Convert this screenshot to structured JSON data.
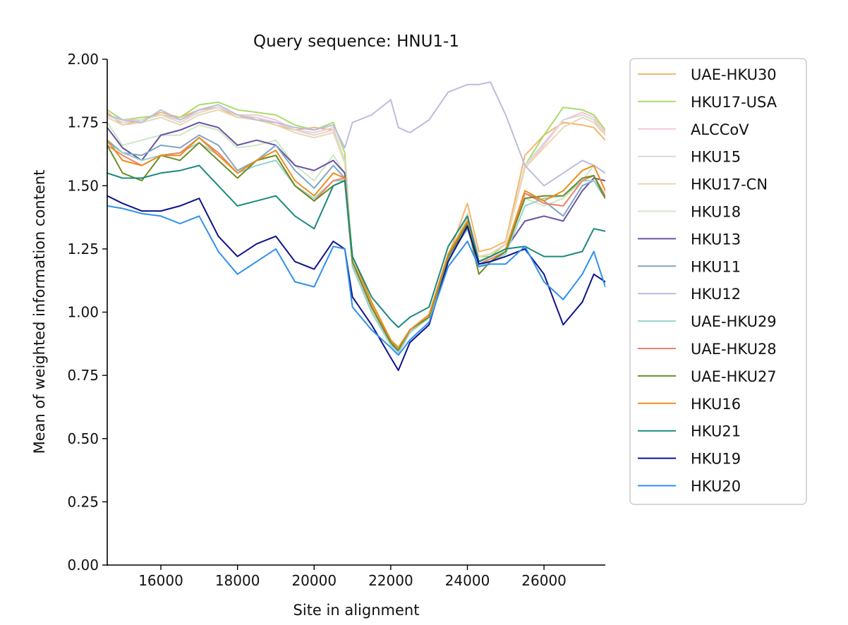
{
  "chart_data": {
    "type": "line",
    "title": "Query sequence: HNU1-1",
    "xlabel": "Site in alignment",
    "ylabel": "Mean of weighted information content",
    "xlim": [
      14600,
      27600
    ],
    "ylim": [
      0,
      2
    ],
    "xticks": [
      16000,
      18000,
      20000,
      22000,
      24000,
      26000
    ],
    "xtick_labels": [
      "16000",
      "18000",
      "20000",
      "22000",
      "24000",
      "26000"
    ],
    "yticks": [
      0,
      0.25,
      0.5,
      0.75,
      1.0,
      1.25,
      1.5,
      1.75,
      2.0
    ],
    "ytick_labels": [
      "0.00",
      "0.25",
      "0.50",
      "0.75",
      "1.00",
      "1.25",
      "1.50",
      "1.75",
      "2.00"
    ],
    "grid": false,
    "legend_position": "outside-right",
    "x": [
      14600,
      15000,
      15500,
      16000,
      16500,
      17000,
      17500,
      18000,
      18500,
      19000,
      19500,
      20000,
      20500,
      20800,
      21000,
      21500,
      22000,
      22200,
      22500,
      23000,
      23500,
      24000,
      24300,
      24600,
      25000,
      25500,
      26000,
      26500,
      27000,
      27300,
      27600
    ],
    "series": [
      {
        "name": "UAE-HKU30",
        "color": "#f7b46b",
        "values": [
          1.79,
          1.74,
          1.76,
          1.79,
          1.77,
          1.8,
          1.81,
          1.77,
          1.77,
          1.74,
          1.72,
          1.73,
          1.72,
          1.6,
          1.2,
          1.03,
          0.89,
          0.86,
          0.92,
          0.98,
          1.22,
          1.43,
          1.24,
          1.25,
          1.28,
          1.62,
          1.7,
          1.75,
          1.74,
          1.73,
          1.68
        ]
      },
      {
        "name": "HKU17-USA",
        "color": "#a9dc6c",
        "values": [
          1.8,
          1.76,
          1.77,
          1.78,
          1.77,
          1.82,
          1.83,
          1.8,
          1.79,
          1.78,
          1.74,
          1.72,
          1.75,
          1.63,
          1.2,
          1.0,
          0.88,
          0.86,
          0.93,
          0.99,
          1.2,
          1.38,
          1.22,
          1.22,
          1.27,
          1.58,
          1.7,
          1.81,
          1.8,
          1.78,
          1.72
        ]
      },
      {
        "name": "ALCCoV",
        "color": "#f6c6d8",
        "values": [
          1.78,
          1.76,
          1.76,
          1.78,
          1.76,
          1.79,
          1.81,
          1.78,
          1.78,
          1.76,
          1.72,
          1.71,
          1.73,
          1.6,
          1.19,
          1.02,
          0.88,
          0.85,
          0.93,
          0.98,
          1.2,
          1.37,
          1.22,
          1.23,
          1.27,
          1.57,
          1.66,
          1.76,
          1.79,
          1.77,
          1.71
        ]
      },
      {
        "name": "HKU15",
        "color": "#d9d9d9",
        "values": [
          1.78,
          1.75,
          1.76,
          1.78,
          1.75,
          1.79,
          1.81,
          1.78,
          1.77,
          1.75,
          1.72,
          1.7,
          1.72,
          1.6,
          1.19,
          1.01,
          0.88,
          0.85,
          0.93,
          0.98,
          1.21,
          1.38,
          1.22,
          1.23,
          1.27,
          1.58,
          1.67,
          1.76,
          1.78,
          1.76,
          1.7
        ]
      },
      {
        "name": "HKU17-CN",
        "color": "#ead7b3",
        "values": [
          1.77,
          1.74,
          1.75,
          1.77,
          1.74,
          1.78,
          1.8,
          1.77,
          1.76,
          1.74,
          1.71,
          1.69,
          1.71,
          1.59,
          1.19,
          1.01,
          0.88,
          0.85,
          0.93,
          0.98,
          1.21,
          1.39,
          1.22,
          1.23,
          1.27,
          1.57,
          1.65,
          1.73,
          1.77,
          1.75,
          1.7
        ]
      },
      {
        "name": "HKU18",
        "color": "#cbe8c2",
        "values": [
          1.75,
          1.66,
          1.68,
          1.7,
          1.7,
          1.74,
          1.72,
          1.65,
          1.66,
          1.68,
          1.58,
          1.52,
          1.62,
          1.55,
          1.18,
          1.0,
          0.87,
          0.84,
          0.92,
          0.98,
          1.22,
          1.38,
          1.2,
          1.21,
          1.24,
          1.45,
          1.42,
          1.45,
          1.52,
          1.58,
          1.55
        ]
      },
      {
        "name": "HKU13",
        "color": "#6a51a3",
        "values": [
          1.73,
          1.65,
          1.6,
          1.7,
          1.72,
          1.75,
          1.73,
          1.66,
          1.68,
          1.66,
          1.58,
          1.56,
          1.6,
          1.55,
          1.2,
          1.02,
          0.88,
          0.84,
          0.92,
          0.98,
          1.22,
          1.33,
          1.2,
          1.22,
          1.25,
          1.36,
          1.38,
          1.36,
          1.48,
          1.53,
          1.52
        ]
      },
      {
        "name": "HKU11",
        "color": "#7ba7c6",
        "values": [
          1.68,
          1.63,
          1.62,
          1.66,
          1.65,
          1.7,
          1.66,
          1.56,
          1.6,
          1.66,
          1.56,
          1.49,
          1.58,
          1.53,
          1.18,
          1.0,
          0.87,
          0.84,
          0.92,
          0.98,
          1.21,
          1.33,
          1.19,
          1.2,
          1.24,
          1.47,
          1.44,
          1.38,
          1.5,
          1.52,
          1.45
        ]
      },
      {
        "name": "HKU12",
        "color": "#bcbddc",
        "values": [
          1.78,
          1.76,
          1.75,
          1.8,
          1.76,
          1.8,
          1.82,
          1.78,
          1.76,
          1.75,
          1.73,
          1.72,
          1.74,
          1.65,
          1.75,
          1.78,
          1.84,
          1.73,
          1.71,
          1.76,
          1.87,
          1.9,
          1.9,
          1.91,
          1.78,
          1.58,
          1.5,
          1.55,
          1.6,
          1.58,
          1.55
        ]
      },
      {
        "name": "UAE-HKU29",
        "color": "#96d3cc",
        "values": [
          1.67,
          1.63,
          1.6,
          1.62,
          1.63,
          1.67,
          1.62,
          1.55,
          1.58,
          1.6,
          1.5,
          1.45,
          1.52,
          1.52,
          1.18,
          1.0,
          0.87,
          0.84,
          0.92,
          0.98,
          1.22,
          1.35,
          1.18,
          1.2,
          1.23,
          1.42,
          1.45,
          1.46,
          1.52,
          1.52,
          1.46
        ]
      },
      {
        "name": "UAE-HKU28",
        "color": "#f1806a",
        "values": [
          1.66,
          1.62,
          1.58,
          1.62,
          1.63,
          1.69,
          1.63,
          1.55,
          1.6,
          1.62,
          1.5,
          1.44,
          1.52,
          1.53,
          1.2,
          1.02,
          0.88,
          0.85,
          0.93,
          0.99,
          1.23,
          1.36,
          1.19,
          1.21,
          1.24,
          1.47,
          1.43,
          1.42,
          1.52,
          1.54,
          1.46
        ]
      },
      {
        "name": "UAE-HKU27",
        "color": "#6b8e23",
        "values": [
          1.66,
          1.55,
          1.52,
          1.62,
          1.6,
          1.67,
          1.6,
          1.53,
          1.6,
          1.62,
          1.5,
          1.44,
          1.5,
          1.52,
          1.2,
          1.02,
          0.88,
          0.85,
          0.93,
          0.98,
          1.22,
          1.35,
          1.15,
          1.2,
          1.24,
          1.45,
          1.46,
          1.46,
          1.53,
          1.54,
          1.45
        ]
      },
      {
        "name": "HKU16",
        "color": "#f08c1a",
        "values": [
          1.68,
          1.6,
          1.58,
          1.62,
          1.62,
          1.69,
          1.62,
          1.55,
          1.6,
          1.64,
          1.52,
          1.46,
          1.55,
          1.53,
          1.22,
          1.04,
          0.89,
          0.86,
          0.93,
          0.99,
          1.23,
          1.36,
          1.2,
          1.22,
          1.25,
          1.48,
          1.44,
          1.48,
          1.56,
          1.58,
          1.48
        ]
      },
      {
        "name": "HKU21",
        "color": "#1a8a7e",
        "values": [
          1.55,
          1.53,
          1.53,
          1.55,
          1.56,
          1.58,
          1.5,
          1.42,
          1.44,
          1.46,
          1.38,
          1.33,
          1.5,
          1.52,
          1.22,
          1.06,
          0.97,
          0.94,
          0.98,
          1.02,
          1.26,
          1.38,
          1.2,
          1.22,
          1.25,
          1.26,
          1.22,
          1.22,
          1.24,
          1.33,
          1.32
        ]
      },
      {
        "name": "HKU19",
        "color": "#0d128c",
        "values": [
          1.46,
          1.43,
          1.4,
          1.4,
          1.42,
          1.45,
          1.3,
          1.22,
          1.27,
          1.3,
          1.2,
          1.17,
          1.28,
          1.25,
          1.06,
          0.95,
          0.82,
          0.77,
          0.88,
          0.95,
          1.2,
          1.34,
          1.19,
          1.2,
          1.22,
          1.25,
          1.15,
          0.95,
          1.04,
          1.15,
          1.12
        ]
      },
      {
        "name": "HKU20",
        "color": "#2f8ff0",
        "values": [
          1.42,
          1.41,
          1.39,
          1.38,
          1.35,
          1.38,
          1.24,
          1.15,
          1.2,
          1.25,
          1.12,
          1.1,
          1.26,
          1.25,
          1.02,
          0.93,
          0.86,
          0.83,
          0.89,
          0.96,
          1.18,
          1.28,
          1.18,
          1.19,
          1.19,
          1.26,
          1.12,
          1.05,
          1.15,
          1.24,
          1.1
        ]
      }
    ]
  }
}
